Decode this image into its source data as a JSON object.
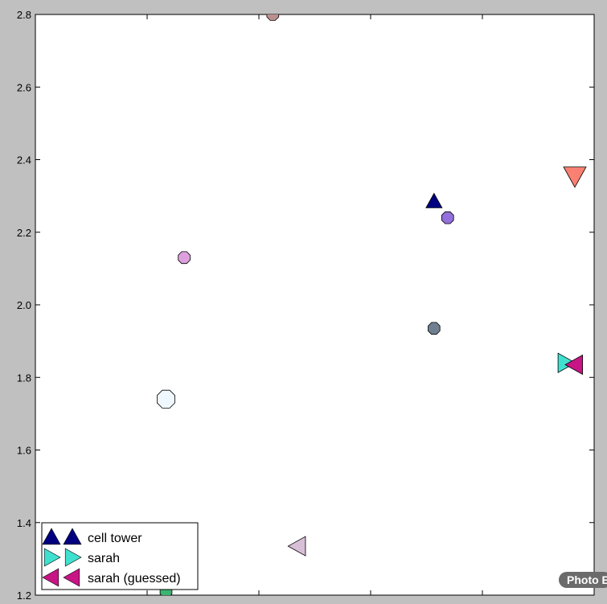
{
  "chart_data": {
    "type": "scatter",
    "title": "",
    "xlabel": "",
    "ylabel": "",
    "ylim": [
      1.2,
      2.8
    ],
    "yticks": [
      "1.2",
      "1.4",
      "1.6",
      "1.8",
      "2.0",
      "2.2",
      "2.4",
      "2.6",
      "2.8"
    ],
    "grid": false,
    "legend_position": "lower-left",
    "legend": [
      {
        "label": "cell tower",
        "marker": "triangle-up",
        "color": "#000080"
      },
      {
        "label": "sarah",
        "marker": "triangle-right",
        "color": "#40e0d0"
      },
      {
        "label": "sarah (guessed)",
        "marker": "triangle-left",
        "color": "#c71585"
      }
    ],
    "points": [
      {
        "series": "other",
        "marker": "octagon",
        "x": 0.335,
        "y": 2.8,
        "size": 8,
        "color": "#bc8f8f"
      },
      {
        "series": "cell tower",
        "marker": "triangle-up",
        "x": 0.69,
        "y": 2.285,
        "size": 10,
        "color": "#000080"
      },
      {
        "series": "other",
        "marker": "octagon",
        "x": 0.72,
        "y": 2.24,
        "size": 8,
        "color": "#9370db"
      },
      {
        "series": "other",
        "marker": "triangle-down",
        "x": 1.0,
        "y": 2.355,
        "size": 14,
        "color": "#fa8072"
      },
      {
        "series": "other",
        "marker": "octagon",
        "x": 0.14,
        "y": 2.13,
        "size": 8,
        "color": "#dda0dd"
      },
      {
        "series": "other",
        "marker": "octagon",
        "x": 0.69,
        "y": 1.935,
        "size": 8,
        "color": "#708090"
      },
      {
        "series": "sarah",
        "marker": "triangle-right",
        "x": 0.98,
        "y": 1.84,
        "size": 12,
        "color": "#40e0d0"
      },
      {
        "series": "sarah (guessed)",
        "marker": "triangle-left",
        "x": 1.0,
        "y": 1.835,
        "size": 12,
        "color": "#c71585"
      },
      {
        "series": "other",
        "marker": "octagon",
        "x": 0.1,
        "y": 1.74,
        "size": 12,
        "color": "#f0f8ff"
      },
      {
        "series": "other",
        "marker": "triangle-left",
        "x": 0.39,
        "y": 1.335,
        "size": 12,
        "color": "#d8bfd8"
      },
      {
        "series": "other",
        "marker": "octagon",
        "x": 0.1,
        "y": 1.21,
        "size": 8,
        "color": "#3cb371"
      }
    ]
  },
  "watermark": {
    "text": "Photo Booth"
  }
}
